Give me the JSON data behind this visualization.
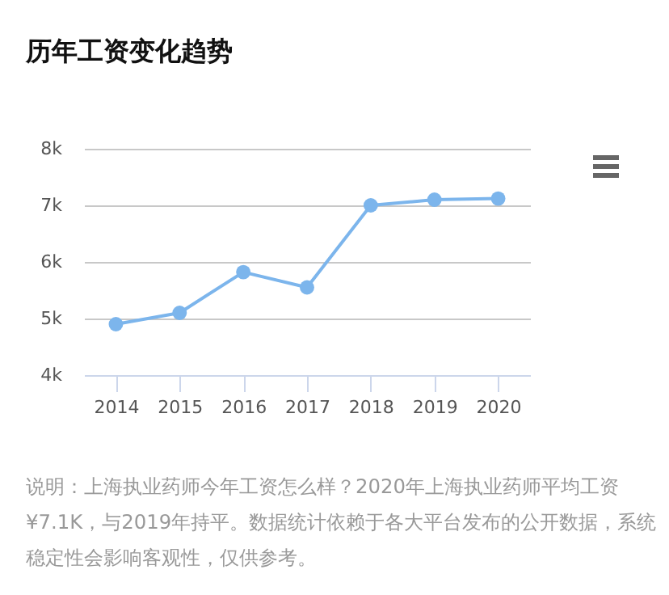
{
  "chart_data": {
    "type": "line",
    "title": "历年工资变化趋势",
    "categories": [
      "2014",
      "2015",
      "2016",
      "2017",
      "2018",
      "2019",
      "2020"
    ],
    "series": [
      {
        "color": "#7cb5ec",
        "values": [
          4900,
          5100,
          5820,
          5550,
          7000,
          7100,
          7120
        ]
      }
    ],
    "ylim": [
      4000,
      8000
    ],
    "yticks": [
      {
        "value": 4000,
        "label": "4k"
      },
      {
        "value": 5000,
        "label": "5k"
      },
      {
        "value": 6000,
        "label": "6k"
      },
      {
        "value": 7000,
        "label": "7k"
      },
      {
        "value": 8000,
        "label": "8k"
      }
    ],
    "grid": "y",
    "marker": "circle",
    "legend": false,
    "annotations": [
      "说明：上海执业药师今年工资怎么样？2020年上海执业药师平均工资¥7.1K，与2019年持平。数据统计依赖于各大平台发布的公开数据，系统稳定性会影响客观性，仅供参考。"
    ]
  }
}
